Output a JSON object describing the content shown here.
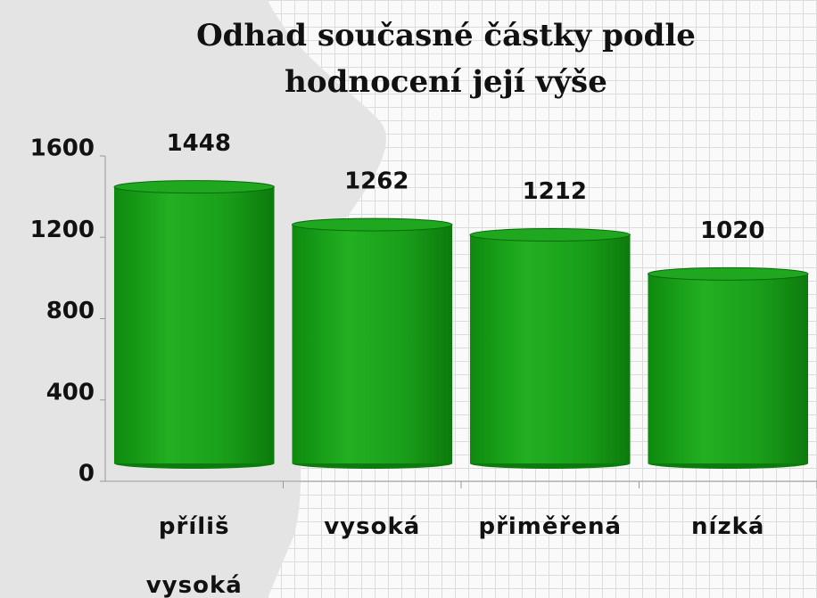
{
  "chart_data": {
    "type": "bar",
    "title": "Odhad současné částky podle hodnocení její výše",
    "categories": [
      "příliš vysoká",
      "vysoká",
      "přiměřená",
      "nízká"
    ],
    "values": [
      1448,
      1262,
      1212,
      1020
    ],
    "color": "#1fa81f",
    "ylim": [
      0,
      1600
    ],
    "yticks": [
      0,
      400,
      800,
      1200,
      1600
    ],
    "grid": false
  }
}
